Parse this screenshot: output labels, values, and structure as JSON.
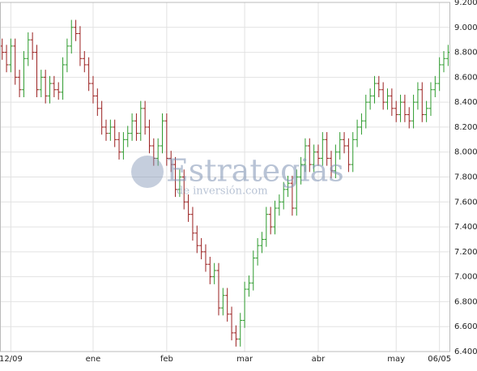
{
  "chart_data": {
    "type": "ohlc",
    "watermark": "Estrategias",
    "watermark_sub": "de inversión.com",
    "categories": [
      null,
      null,
      "12/09",
      null,
      null,
      null,
      null,
      null,
      null,
      null,
      null,
      null,
      null,
      null,
      null,
      null,
      null,
      null,
      null,
      null,
      null,
      "ene",
      null,
      null,
      null,
      null,
      null,
      null,
      null,
      null,
      null,
      null,
      null,
      null,
      null,
      null,
      null,
      null,
      "feb",
      null,
      null,
      null,
      null,
      null,
      null,
      null,
      null,
      null,
      null,
      null,
      null,
      null,
      null,
      null,
      null,
      null,
      "mar",
      null,
      null,
      null,
      null,
      null,
      null,
      null,
      null,
      null,
      null,
      null,
      null,
      null,
      null,
      null,
      null,
      "abr",
      null,
      null,
      null,
      null,
      null,
      null,
      null,
      null,
      null,
      null,
      null,
      null,
      null,
      null,
      null,
      null,
      null,
      "may",
      null,
      null,
      null,
      null,
      null,
      null,
      null,
      null,
      null,
      "06/05",
      null,
      null
    ],
    "open": [
      8850,
      8800,
      8700,
      8850,
      8600,
      8500,
      8750,
      8900,
      8800,
      8500,
      8600,
      8450,
      8550,
      8500,
      8480,
      8700,
      8850,
      9000,
      8950,
      8750,
      8700,
      8550,
      8450,
      8350,
      8200,
      8150,
      8200,
      8100,
      8000,
      8100,
      8150,
      8250,
      8150,
      8350,
      8200,
      8050,
      7950,
      8050,
      8250,
      7950,
      7900,
      7700,
      7800,
      7600,
      7500,
      7350,
      7250,
      7200,
      7100,
      7000,
      7050,
      6750,
      6850,
      6700,
      6550,
      6500,
      6650,
      6900,
      6950,
      7150,
      7250,
      7300,
      7500,
      7400,
      7550,
      7600,
      7700,
      7750,
      7550,
      7800,
      7900,
      8050,
      7900,
      8000,
      7950,
      8100,
      7950,
      7850,
      8000,
      8100,
      8050,
      7900,
      8100,
      8200,
      8250,
      8400,
      8450,
      8550,
      8500,
      8400,
      8450,
      8350,
      8300,
      8400,
      8300,
      8250,
      8400,
      8500,
      8300,
      8350,
      8500,
      8550,
      8700,
      8750
    ],
    "high": [
      8910,
      8860,
      8910,
      8910,
      8660,
      8810,
      8960,
      8960,
      8860,
      8660,
      8660,
      8610,
      8610,
      8560,
      8760,
      8910,
      9060,
      9060,
      9010,
      8810,
      8760,
      8610,
      8510,
      8410,
      8260,
      8260,
      8260,
      8160,
      8160,
      8210,
      8310,
      8310,
      8410,
      8410,
      8260,
      8110,
      8110,
      8310,
      8310,
      8010,
      7960,
      7860,
      7860,
      7660,
      7560,
      7410,
      7310,
      7260,
      7160,
      7110,
      7110,
      6910,
      6910,
      6760,
      6610,
      6710,
      6960,
      7010,
      7210,
      7310,
      7360,
      7560,
      7560,
      7610,
      7660,
      7760,
      7810,
      7810,
      7860,
      7960,
      8110,
      8110,
      8060,
      8060,
      8160,
      8160,
      8010,
      8060,
      8160,
      8160,
      8110,
      8160,
      8260,
      8310,
      8460,
      8510,
      8610,
      8610,
      8560,
      8510,
      8510,
      8410,
      8460,
      8460,
      8360,
      8460,
      8560,
      8560,
      8410,
      8560,
      8610,
      8760,
      8810,
      8860
    ],
    "low": [
      8740,
      8640,
      8640,
      8540,
      8440,
      8440,
      8690,
      8740,
      8440,
      8440,
      8390,
      8390,
      8440,
      8420,
      8420,
      8640,
      8790,
      8890,
      8690,
      8640,
      8490,
      8390,
      8290,
      8140,
      8090,
      8090,
      8040,
      7940,
      7940,
      8040,
      8090,
      8090,
      8090,
      8140,
      7990,
      7890,
      7890,
      7990,
      7890,
      7840,
      7640,
      7640,
      7540,
      7440,
      7290,
      7190,
      7140,
      7040,
      6940,
      6940,
      6690,
      6690,
      6640,
      6490,
      6440,
      6440,
      6590,
      6840,
      6890,
      7090,
      7190,
      7240,
      7340,
      7340,
      7490,
      7540,
      7640,
      7490,
      7490,
      7740,
      7840,
      7840,
      7840,
      7890,
      7890,
      7890,
      7790,
      7790,
      7940,
      7990,
      7840,
      7840,
      8040,
      8140,
      8190,
      8340,
      8390,
      8440,
      8340,
      8340,
      8290,
      8240,
      8240,
      8240,
      8190,
      8190,
      8340,
      8240,
      8240,
      8290,
      8440,
      8490,
      8640,
      8690
    ],
    "close": [
      8800,
      8700,
      8850,
      8600,
      8500,
      8750,
      8900,
      8800,
      8500,
      8600,
      8450,
      8550,
      8500,
      8480,
      8700,
      8850,
      9000,
      8950,
      8750,
      8700,
      8550,
      8450,
      8350,
      8200,
      8150,
      8200,
      8100,
      8000,
      8100,
      8150,
      8250,
      8150,
      8350,
      8200,
      8050,
      7950,
      8050,
      8250,
      7950,
      7900,
      7700,
      7800,
      7600,
      7500,
      7350,
      7250,
      7200,
      7100,
      7000,
      7050,
      6750,
      6850,
      6700,
      6550,
      6500,
      6650,
      6900,
      6950,
      7150,
      7250,
      7300,
      7500,
      7400,
      7550,
      7600,
      7700,
      7750,
      7550,
      7800,
      7900,
      8050,
      7900,
      8000,
      7950,
      8100,
      7950,
      7850,
      8000,
      8100,
      8050,
      7900,
      8100,
      8200,
      8250,
      8400,
      8450,
      8550,
      8500,
      8400,
      8450,
      8350,
      8300,
      8400,
      8300,
      8250,
      8400,
      8500,
      8300,
      8350,
      8500,
      8550,
      8700,
      8750,
      8800
    ],
    "up_color": "#2e9b2e",
    "down_color": "#9a1f1f",
    "ylim": [
      6400,
      9200
    ],
    "yticks": [
      {
        "value": 6400,
        "label": "6.400"
      },
      {
        "value": 6600,
        "label": "6.600"
      },
      {
        "value": 6800,
        "label": "6.800"
      },
      {
        "value": 7000,
        "label": "7.000"
      },
      {
        "value": 7200,
        "label": "7.200"
      },
      {
        "value": 7400,
        "label": "7.400"
      },
      {
        "value": 7600,
        "label": "7.600"
      },
      {
        "value": 7800,
        "label": "7.800"
      },
      {
        "value": 8000,
        "label": "8.000"
      },
      {
        "value": 8200,
        "label": "8.200"
      },
      {
        "value": 8400,
        "label": "8.400"
      },
      {
        "value": 8600,
        "label": "8.600"
      },
      {
        "value": 8800,
        "label": "8.800"
      },
      {
        "value": 9000,
        "label": "9.000"
      },
      {
        "value": 9200,
        "label": "9.200"
      }
    ],
    "grid": true
  }
}
